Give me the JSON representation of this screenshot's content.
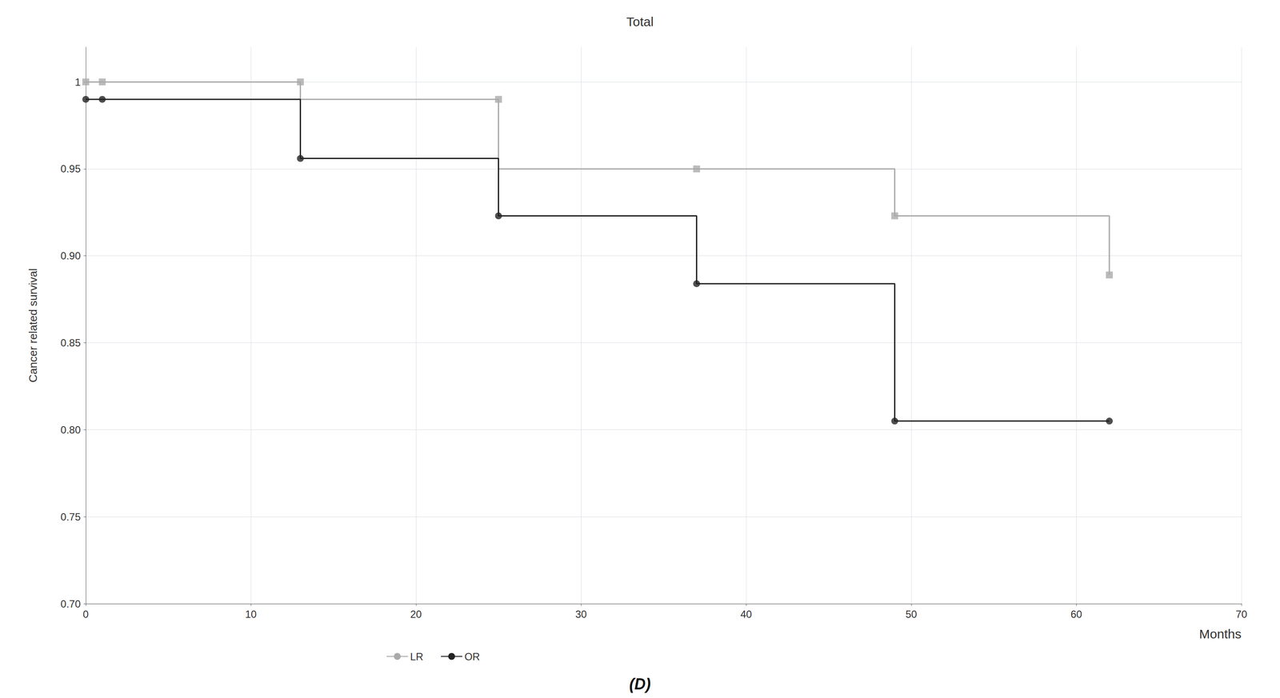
{
  "chart_data": {
    "type": "line",
    "title": "Total",
    "xlabel": "Months",
    "ylabel": "Cancer related survival",
    "annotation": "(D)",
    "xlim": [
      0,
      70
    ],
    "xticks": [
      0,
      10,
      20,
      30,
      40,
      50,
      60,
      70
    ],
    "ylim": [
      0.7,
      1.02
    ],
    "yticks": [
      {
        "value": 0.7,
        "label": "0.70"
      },
      0.75,
      {
        "value": 0.8,
        "label": "0.80"
      },
      0.85,
      {
        "value": 0.9,
        "label": "0.90"
      },
      0.95,
      1
    ],
    "grid": true,
    "legend": "bottom",
    "series": [
      {
        "name": "LR",
        "color": "#aaaaaa",
        "marker": "square",
        "x": [
          0,
          1,
          13,
          13,
          25,
          25,
          37,
          37,
          49,
          49,
          62,
          62
        ],
        "values": [
          1.0,
          1.0,
          1.0,
          0.99,
          0.99,
          0.95,
          0.95,
          0.95,
          0.95,
          0.923,
          0.923,
          0.889
        ],
        "marker_x": [
          0,
          1,
          13,
          25,
          37,
          49,
          62
        ],
        "marker_values": [
          1.0,
          1.0,
          1.0,
          0.99,
          0.95,
          0.923,
          0.889
        ]
      },
      {
        "name": "OR",
        "color": "#222222",
        "marker": "circle",
        "x": [
          0,
          1,
          13,
          13,
          25,
          25,
          37,
          37,
          49,
          49,
          62,
          62
        ],
        "values": [
          0.99,
          0.99,
          0.99,
          0.956,
          0.956,
          0.923,
          0.923,
          0.884,
          0.884,
          0.805,
          0.805,
          0.805
        ],
        "marker_x": [
          0,
          1,
          13,
          25,
          37,
          49,
          62
        ],
        "marker_values": [
          0.99,
          0.99,
          0.956,
          0.923,
          0.884,
          0.805,
          0.805
        ]
      }
    ]
  }
}
